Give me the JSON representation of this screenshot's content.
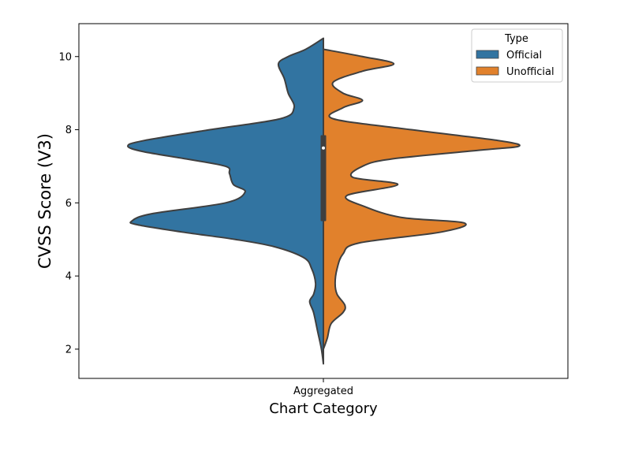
{
  "chart_data": {
    "type": "violin",
    "split": true,
    "xlabel": "Chart Category",
    "ylabel": "CVSS Score (V3)",
    "categories": [
      "Aggregated"
    ],
    "ylim": [
      1.2,
      10.9
    ],
    "yticks": [
      2,
      4,
      6,
      8,
      10
    ],
    "grid": false,
    "legend": {
      "title": "Type",
      "position": "top-right"
    },
    "series": [
      {
        "name": "Official",
        "color": "#3274a1",
        "side": "left",
        "density": [
          [
            1.6,
            0.0
          ],
          [
            2.0,
            0.01
          ],
          [
            2.5,
            0.03
          ],
          [
            3.0,
            0.05
          ],
          [
            3.3,
            0.07
          ],
          [
            3.5,
            0.05
          ],
          [
            3.8,
            0.04
          ],
          [
            4.2,
            0.06
          ],
          [
            4.5,
            0.1
          ],
          [
            4.8,
            0.25
          ],
          [
            5.0,
            0.45
          ],
          [
            5.2,
            0.72
          ],
          [
            5.4,
            0.95
          ],
          [
            5.5,
            0.98
          ],
          [
            5.7,
            0.88
          ],
          [
            6.0,
            0.5
          ],
          [
            6.3,
            0.4
          ],
          [
            6.5,
            0.46
          ],
          [
            6.8,
            0.48
          ],
          [
            7.0,
            0.5
          ],
          [
            7.2,
            0.7
          ],
          [
            7.4,
            0.92
          ],
          [
            7.55,
            1.0
          ],
          [
            7.7,
            0.92
          ],
          [
            8.0,
            0.58
          ],
          [
            8.3,
            0.22
          ],
          [
            8.6,
            0.15
          ],
          [
            9.0,
            0.18
          ],
          [
            9.4,
            0.2
          ],
          [
            9.8,
            0.23
          ],
          [
            10.0,
            0.18
          ],
          [
            10.2,
            0.09
          ],
          [
            10.5,
            0.0
          ]
        ]
      },
      {
        "name": "Unofficial",
        "color": "#e1812c",
        "side": "right",
        "density": [
          [
            2.0,
            0.0
          ],
          [
            2.3,
            0.02
          ],
          [
            2.7,
            0.04
          ],
          [
            3.0,
            0.1
          ],
          [
            3.2,
            0.11
          ],
          [
            3.5,
            0.07
          ],
          [
            3.8,
            0.06
          ],
          [
            4.2,
            0.07
          ],
          [
            4.6,
            0.1
          ],
          [
            4.9,
            0.18
          ],
          [
            5.2,
            0.6
          ],
          [
            5.45,
            0.72
          ],
          [
            5.6,
            0.4
          ],
          [
            5.9,
            0.21
          ],
          [
            6.2,
            0.12
          ],
          [
            6.5,
            0.38
          ],
          [
            6.7,
            0.15
          ],
          [
            7.0,
            0.2
          ],
          [
            7.2,
            0.35
          ],
          [
            7.45,
            0.82
          ],
          [
            7.55,
            1.0
          ],
          [
            7.7,
            0.9
          ],
          [
            8.0,
            0.45
          ],
          [
            8.3,
            0.05
          ],
          [
            8.6,
            0.1
          ],
          [
            8.8,
            0.2
          ],
          [
            9.0,
            0.1
          ],
          [
            9.3,
            0.05
          ],
          [
            9.6,
            0.2
          ],
          [
            9.8,
            0.36
          ],
          [
            10.0,
            0.2
          ],
          [
            10.2,
            0.0
          ]
        ]
      }
    ],
    "box": {
      "q1": 5.5,
      "median": 7.5,
      "q3": 7.85
    }
  }
}
